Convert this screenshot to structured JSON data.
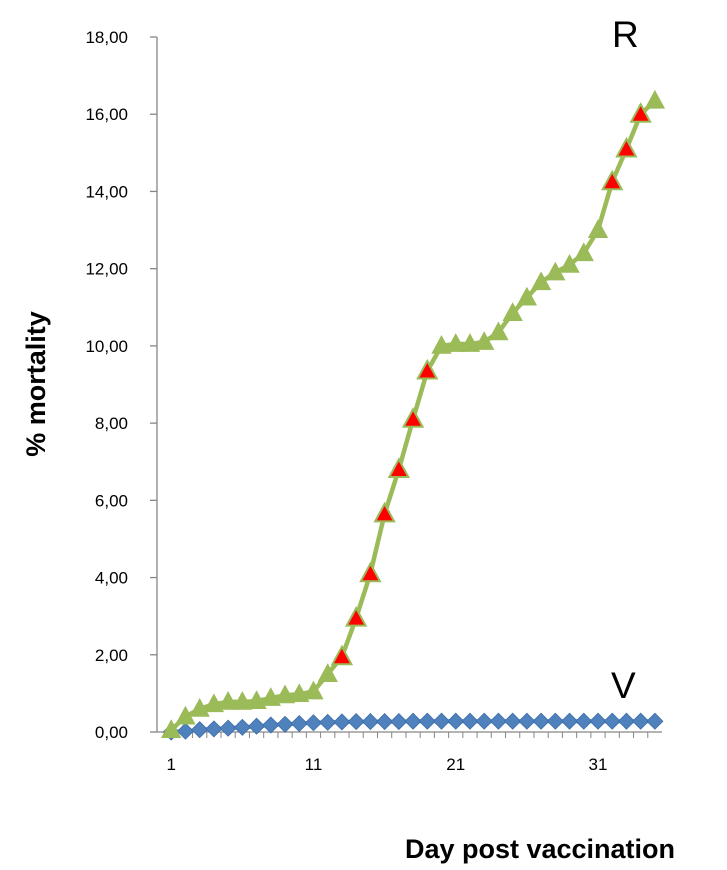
{
  "chart_data": {
    "type": "line",
    "title": "",
    "xlabel": "Day post vaccination",
    "ylabel": "% mortality",
    "xlim": [
      1,
      35
    ],
    "ylim": [
      0,
      18
    ],
    "x_ticks": [
      "1",
      "11",
      "21",
      "31"
    ],
    "y_ticks": [
      "0,00",
      "2,00",
      "4,00",
      "6,00",
      "8,00",
      "10,00",
      "12,00",
      "14,00",
      "16,00",
      "18,00"
    ],
    "x_tick_values": [
      1,
      11,
      21,
      31
    ],
    "y_tick_values": [
      0,
      2,
      4,
      6,
      8,
      10,
      12,
      14,
      16,
      18
    ],
    "grid": false,
    "legend": "none",
    "series": [
      {
        "name": "R",
        "color": "#9bbb59",
        "marker": "triangle",
        "highlight_marker_color": "#ff0000",
        "x": [
          1,
          2,
          3,
          4,
          5,
          6,
          7,
          8,
          9,
          10,
          11,
          12,
          13,
          14,
          15,
          16,
          17,
          18,
          19,
          20,
          21,
          22,
          23,
          24,
          25,
          26,
          27,
          28,
          29,
          30,
          31,
          32,
          33,
          34,
          35
        ],
        "values": [
          0.05,
          0.4,
          0.6,
          0.72,
          0.78,
          0.78,
          0.8,
          0.88,
          0.95,
          0.98,
          1.05,
          1.5,
          1.95,
          2.95,
          4.1,
          5.65,
          6.8,
          8.1,
          9.35,
          10.0,
          10.05,
          10.05,
          10.1,
          10.35,
          10.85,
          11.25,
          11.65,
          11.9,
          12.1,
          12.4,
          13.0,
          14.25,
          15.1,
          16.0,
          16.35
        ],
        "highlighted_x": [
          13,
          14,
          15,
          16,
          17,
          18,
          19,
          32,
          33,
          34
        ]
      },
      {
        "name": "V",
        "color": "#4f81bd",
        "marker": "diamond",
        "x": [
          1,
          2,
          3,
          4,
          5,
          6,
          7,
          8,
          9,
          10,
          11,
          12,
          13,
          14,
          15,
          16,
          17,
          18,
          19,
          20,
          21,
          22,
          23,
          24,
          25,
          26,
          27,
          28,
          29,
          30,
          31,
          32,
          33,
          34,
          35
        ],
        "values": [
          0,
          0.02,
          0.06,
          0.08,
          0.1,
          0.12,
          0.15,
          0.18,
          0.2,
          0.22,
          0.24,
          0.25,
          0.26,
          0.27,
          0.27,
          0.27,
          0.27,
          0.28,
          0.28,
          0.28,
          0.28,
          0.28,
          0.28,
          0.28,
          0.28,
          0.28,
          0.28,
          0.28,
          0.28,
          0.28,
          0.28,
          0.28,
          0.28,
          0.28,
          0.28
        ]
      }
    ]
  }
}
